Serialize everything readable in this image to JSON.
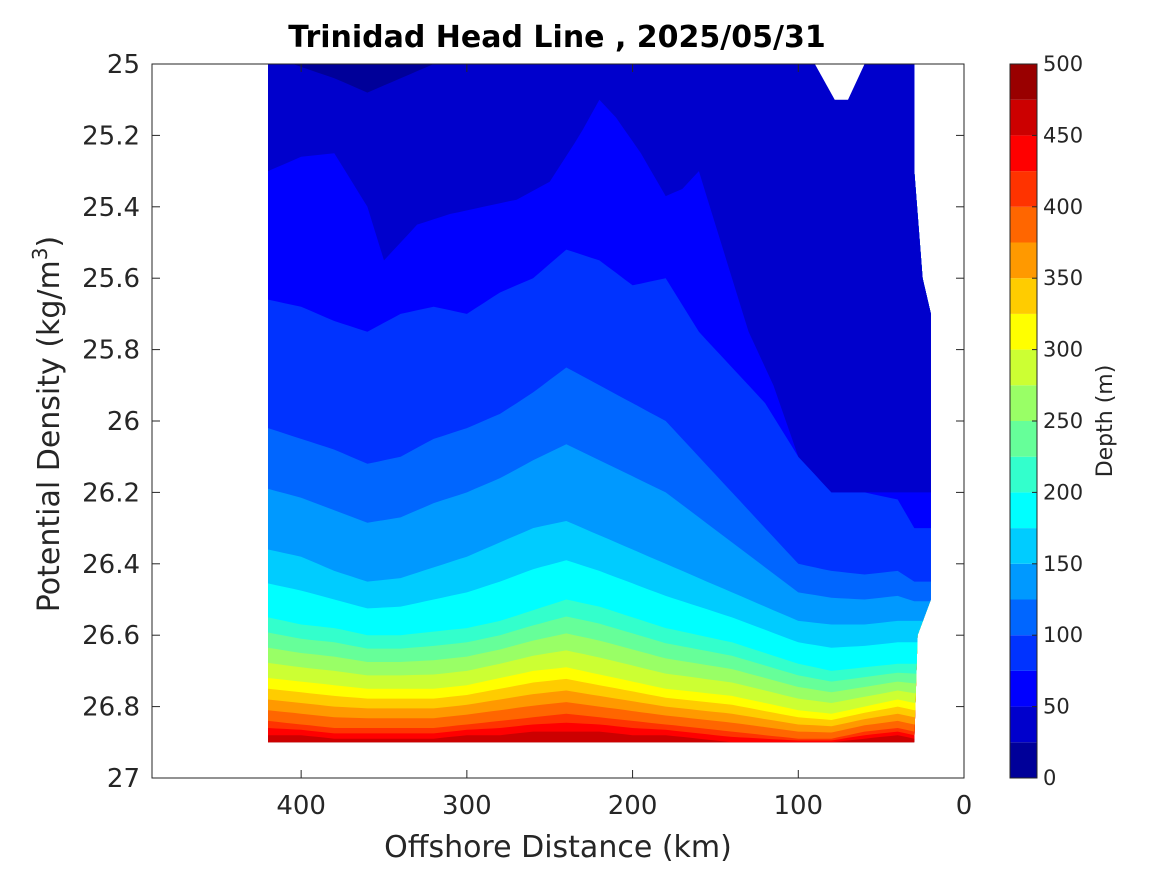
{
  "chart_data": {
    "type": "contour",
    "title": "Trinidad Head Line , 2025/05/31",
    "xlabel": "Offshore Distance (km)",
    "ylabel_main": "Potential Density (kg/m",
    "ylabel_sup": "3",
    "ylabel_close": ")",
    "xlim": [
      490,
      0
    ],
    "xaxis_reversed": true,
    "ylim": [
      25,
      27
    ],
    "yaxis_reversed": true,
    "xticks": [
      400,
      300,
      200,
      100,
      0
    ],
    "xtick_labels": [
      "400",
      "300",
      "200",
      "100",
      "0"
    ],
    "yticks": [
      25,
      25.2,
      25.4,
      25.6,
      25.8,
      26,
      26.2,
      26.4,
      26.6,
      26.8,
      27
    ],
    "ytick_labels": [
      "25",
      "25.2",
      "25.4",
      "25.6",
      "25.8",
      "26",
      "26.2",
      "26.4",
      "26.6",
      "26.8",
      "27"
    ],
    "colorbar": {
      "label": "Depth (m)",
      "min": 0,
      "max": 500,
      "level_step": 25,
      "ticks": [
        0,
        50,
        100,
        150,
        200,
        250,
        300,
        350,
        400,
        450,
        500
      ],
      "tick_labels": [
        "0",
        "50",
        "100",
        "150",
        "200",
        "250",
        "300",
        "350",
        "400",
        "450",
        "500"
      ],
      "colormap": "jet"
    },
    "section": {
      "offshore_distance_km": [
        420,
        300,
        200,
        100,
        30
      ],
      "max_potential_density": [
        26.9,
        26.9,
        26.9,
        26.9,
        26.9
      ]
    },
    "contours": [
      {
        "depth_m": 25,
        "x": [
          420,
          405,
          380,
          360,
          345,
          320,
          300,
          270,
          240,
          215,
          205,
          185,
          170,
          160,
          150,
          140,
          130,
          125,
          120
        ],
        "y": [
          25,
          25,
          25.04,
          25.08,
          25.05,
          25,
          25,
          25,
          25,
          25,
          25,
          25,
          25,
          25,
          25,
          25,
          25,
          25,
          25
        ]
      },
      {
        "depth_m": 50,
        "x": [
          420,
          400,
          380,
          360,
          350,
          330,
          310,
          290,
          270,
          250,
          232,
          220,
          210,
          195,
          180,
          170,
          160,
          150,
          140,
          130,
          115,
          100,
          90,
          80,
          70,
          60,
          50,
          40
        ],
        "y": [
          25.3,
          25.26,
          25.25,
          25.4,
          25.55,
          25.45,
          25.42,
          25.4,
          25.38,
          25.33,
          25.2,
          25.1,
          25.15,
          25.25,
          25.37,
          25.35,
          25.3,
          25.45,
          25.6,
          25.75,
          25.9,
          26.1,
          26.15,
          26.2,
          26.2,
          26.2,
          26.2,
          26.2
        ]
      },
      {
        "depth_m": 75,
        "x": [
          420,
          400,
          380,
          360,
          340,
          320,
          300,
          280,
          260,
          240,
          220,
          200,
          180,
          160,
          140,
          120,
          100,
          80,
          60,
          40,
          30
        ],
        "y": [
          25.66,
          25.68,
          25.72,
          25.75,
          25.7,
          25.68,
          25.7,
          25.64,
          25.6,
          25.52,
          25.55,
          25.62,
          25.6,
          25.75,
          25.85,
          25.95,
          26.1,
          26.2,
          26.2,
          26.22,
          26.3
        ]
      },
      {
        "depth_m": 100,
        "x": [
          420,
          400,
          380,
          360,
          340,
          320,
          300,
          280,
          260,
          240,
          220,
          200,
          180,
          160,
          140,
          120,
          100,
          80,
          60,
          40,
          30
        ],
        "y": [
          26.02,
          26.05,
          26.08,
          26.12,
          26.1,
          26.05,
          26.02,
          25.98,
          25.92,
          25.85,
          25.9,
          25.95,
          26.0,
          26.1,
          26.2,
          26.3,
          26.4,
          26.42,
          26.43,
          26.42,
          26.45
        ]
      },
      {
        "depth_m": 150,
        "x": [
          420,
          400,
          380,
          360,
          340,
          320,
          300,
          280,
          260,
          240,
          220,
          200,
          180,
          160,
          140,
          120,
          100,
          80,
          60,
          40,
          30
        ],
        "y": [
          26.36,
          26.38,
          26.42,
          26.45,
          26.44,
          26.41,
          26.38,
          26.34,
          26.3,
          26.28,
          26.32,
          26.36,
          26.4,
          26.44,
          26.48,
          26.52,
          26.56,
          26.57,
          26.57,
          26.56,
          26.56
        ]
      },
      {
        "depth_m": 200,
        "x": [
          420,
          400,
          380,
          360,
          340,
          320,
          300,
          280,
          260,
          240,
          220,
          200,
          180,
          160,
          140,
          120,
          100,
          80,
          60,
          40,
          30
        ],
        "y": [
          26.55,
          26.57,
          26.58,
          26.6,
          26.6,
          26.59,
          26.58,
          26.56,
          26.53,
          26.5,
          26.52,
          26.55,
          26.58,
          26.6,
          26.62,
          26.65,
          26.68,
          26.7,
          26.69,
          26.68,
          26.68
        ]
      },
      {
        "depth_m": 300,
        "x": [
          420,
          400,
          380,
          360,
          340,
          320,
          300,
          280,
          260,
          240,
          220,
          200,
          180,
          160,
          140,
          120,
          100,
          80,
          60,
          40,
          30
        ],
        "y": [
          26.72,
          26.73,
          26.74,
          26.75,
          26.75,
          26.75,
          26.74,
          26.72,
          26.7,
          26.69,
          26.71,
          26.73,
          26.75,
          26.76,
          26.77,
          26.79,
          26.81,
          26.82,
          26.8,
          26.78,
          26.79
        ]
      },
      {
        "depth_m": 400,
        "x": [
          420,
          400,
          380,
          360,
          340,
          320,
          300,
          280,
          260,
          240,
          220,
          200,
          180,
          160,
          140,
          120,
          100,
          80,
          60,
          40,
          30
        ],
        "y": [
          26.84,
          26.85,
          26.86,
          26.86,
          26.86,
          26.86,
          26.85,
          26.84,
          26.83,
          26.82,
          26.83,
          26.84,
          26.85,
          26.86,
          26.87,
          26.88,
          26.89,
          26.89,
          26.87,
          26.86,
          26.87
        ]
      },
      {
        "depth_m": 450,
        "x": [
          420,
          400,
          380,
          360,
          340,
          320,
          300,
          280,
          260,
          240,
          220,
          200,
          180,
          160,
          140,
          120,
          100,
          80,
          60,
          40,
          30
        ],
        "y": [
          26.88,
          26.88,
          26.89,
          26.89,
          26.89,
          26.89,
          26.88,
          26.88,
          26.87,
          26.87,
          26.87,
          26.88,
          26.88,
          26.89,
          26.9,
          26.9,
          26.9,
          26.9,
          26.89,
          26.88,
          26.89
        ]
      }
    ]
  }
}
